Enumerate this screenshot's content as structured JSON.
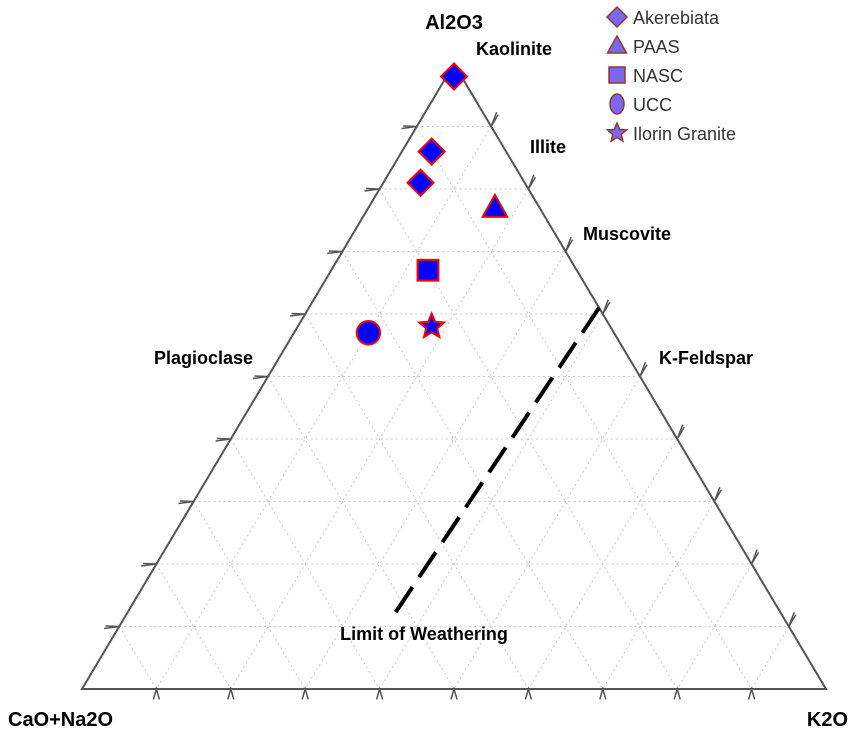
{
  "chart_data": {
    "type": "scatter",
    "subtype": "ternary",
    "vertices": {
      "top": "Al2O3",
      "bottom_left": "CaO+Na2O",
      "bottom_right": "K2O"
    },
    "grid": true,
    "grid_divisions": 10,
    "mineral_labels": [
      {
        "name": "Kaolinite",
        "a": 100,
        "cn": 0,
        "k": 0
      },
      {
        "name": "Illite",
        "a": 85,
        "cn": 0,
        "k": 15
      },
      {
        "name": "Muscovite",
        "a": 61,
        "cn": 0,
        "k": 39
      },
      {
        "name": "K-Feldspar",
        "a": 50,
        "cn": 0,
        "k": 50
      },
      {
        "name": "Plagioclase",
        "a": 50,
        "cn": 50,
        "k": 0
      }
    ],
    "weathering_line": {
      "label": "Limit of Weathering",
      "from": {
        "a": 61,
        "cn": 0,
        "k": 39
      },
      "to": {
        "a": 12,
        "cn": 52,
        "k": 36
      },
      "style": "dashed"
    },
    "legend_position": "top-right",
    "series": [
      {
        "name": "Akerebiata",
        "marker": "diamond",
        "points": [
          {
            "a": 98,
            "cn": 1,
            "k": 1
          },
          {
            "a": 86,
            "cn": 10,
            "k": 4
          },
          {
            "a": 81,
            "cn": 14,
            "k": 5
          }
        ]
      },
      {
        "name": "PAAS",
        "marker": "triangle",
        "points": [
          {
            "a": 77,
            "cn": 6,
            "k": 17
          }
        ]
      },
      {
        "name": "NASC",
        "marker": "square",
        "points": [
          {
            "a": 67,
            "cn": 20,
            "k": 13
          }
        ]
      },
      {
        "name": "UCC",
        "marker": "circle",
        "points": [
          {
            "a": 57,
            "cn": 33,
            "k": 10
          }
        ]
      },
      {
        "name": "Ilorin Granite",
        "marker": "star",
        "points": [
          {
            "a": 58,
            "cn": 24,
            "k": 18
          }
        ]
      }
    ],
    "colors": {
      "marker_fill": "#0000ff",
      "marker_stroke": "#ff0000",
      "legend_fill": "#7b68ee",
      "legend_stroke": "#8b3a3a",
      "edge": "#555555",
      "grid": "#c8c8c8",
      "weathering_line": "#000000"
    }
  }
}
